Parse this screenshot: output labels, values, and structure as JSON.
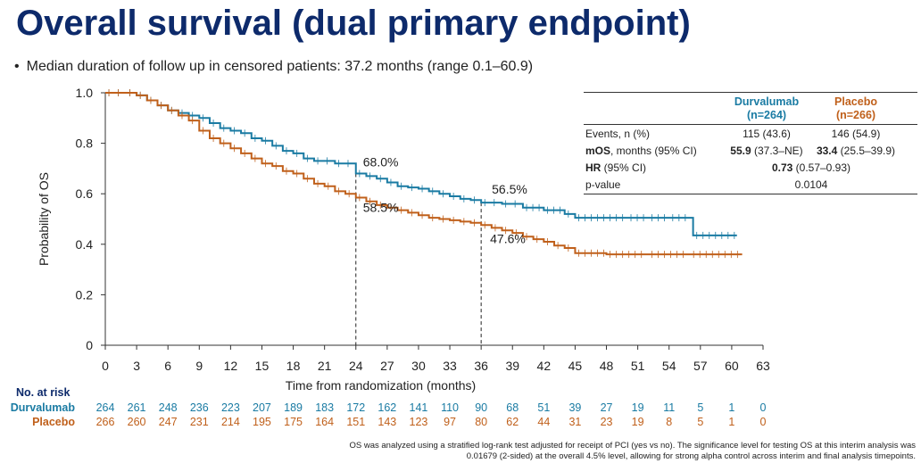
{
  "title": "Overall survival (dual primary endpoint)",
  "bullet": "Median duration of follow up in censored patients: 37.2 months (range 0.1–60.9)",
  "colors": {
    "durvalumab": "#1a7ba3",
    "placebo": "#c0601b",
    "title": "#0d2a6b"
  },
  "chart_data": {
    "type": "line",
    "subtype": "kaplan-meier",
    "xlabel": "Time from randomization (months)",
    "ylabel": "Probability of OS",
    "xlim": [
      0,
      63
    ],
    "ylim": [
      0,
      1.0
    ],
    "x_ticks": [
      0,
      3,
      6,
      9,
      12,
      15,
      18,
      21,
      24,
      27,
      30,
      33,
      36,
      39,
      42,
      45,
      48,
      51,
      54,
      57,
      60,
      63
    ],
    "y_ticks": [
      0,
      0.2,
      0.4,
      0.6,
      0.8,
      1.0
    ],
    "y_tick_labels": [
      "0",
      "0.2",
      "0.4",
      "0.6",
      "0.8",
      "1.0"
    ],
    "series": [
      {
        "name": "Durvalumab",
        "x": [
          0,
          2,
          3,
          4,
          5,
          6,
          7,
          8,
          9,
          10,
          11,
          12,
          13,
          14,
          15,
          16,
          17,
          18,
          19,
          20,
          22,
          24,
          25,
          26,
          27,
          28,
          29,
          30,
          31,
          32,
          33,
          34,
          35,
          36,
          38,
          40,
          42,
          44,
          45,
          48,
          50,
          52,
          54,
          56,
          56.3,
          60.5
        ],
        "y": [
          1.0,
          1.0,
          0.99,
          0.97,
          0.95,
          0.93,
          0.92,
          0.91,
          0.9,
          0.88,
          0.86,
          0.85,
          0.84,
          0.82,
          0.81,
          0.79,
          0.77,
          0.76,
          0.74,
          0.73,
          0.72,
          0.68,
          0.67,
          0.66,
          0.645,
          0.63,
          0.625,
          0.62,
          0.61,
          0.6,
          0.59,
          0.58,
          0.575,
          0.565,
          0.56,
          0.545,
          0.535,
          0.52,
          0.505,
          0.505,
          0.505,
          0.505,
          0.505,
          0.505,
          0.435,
          0.435
        ]
      },
      {
        "name": "Placebo",
        "x": [
          0,
          2,
          3,
          4,
          5,
          6,
          7,
          8,
          9,
          10,
          11,
          12,
          13,
          14,
          15,
          16,
          17,
          18,
          19,
          20,
          21,
          22,
          23,
          24,
          25,
          26,
          27,
          28,
          29,
          30,
          31,
          32,
          33,
          34,
          35,
          36,
          37,
          38,
          39,
          40,
          41,
          42,
          43,
          44,
          45,
          48,
          52,
          56,
          61
        ],
        "y": [
          1.0,
          1.0,
          0.99,
          0.97,
          0.95,
          0.93,
          0.91,
          0.89,
          0.85,
          0.82,
          0.8,
          0.78,
          0.76,
          0.74,
          0.72,
          0.71,
          0.69,
          0.68,
          0.66,
          0.64,
          0.63,
          0.61,
          0.6,
          0.585,
          0.57,
          0.555,
          0.545,
          0.535,
          0.525,
          0.515,
          0.505,
          0.5,
          0.495,
          0.49,
          0.485,
          0.476,
          0.465,
          0.455,
          0.445,
          0.43,
          0.42,
          0.41,
          0.395,
          0.385,
          0.365,
          0.36,
          0.36,
          0.36,
          0.36
        ]
      }
    ],
    "annotations": [
      {
        "text": "68.0%",
        "x": 24,
        "y": 0.68,
        "series": "Durvalumab"
      },
      {
        "text": "58.5%",
        "x": 24,
        "y": 0.585,
        "series": "Placebo"
      },
      {
        "text": "56.5%",
        "x": 36,
        "y": 0.565,
        "series": "Durvalumab"
      },
      {
        "text": "47.6%",
        "x": 36,
        "y": 0.476,
        "series": "Placebo"
      }
    ],
    "reference_lines_x": [
      24,
      36
    ]
  },
  "risk_table": {
    "header": "No. at risk",
    "times": [
      0,
      3,
      6,
      9,
      12,
      15,
      18,
      21,
      24,
      27,
      30,
      33,
      36,
      39,
      42,
      45,
      48,
      51,
      54,
      57,
      60,
      63
    ],
    "rows": [
      {
        "label": "Durvalumab",
        "values": [
          "264",
          "261",
          "248",
          "236",
          "223",
          "207",
          "189",
          "183",
          "172",
          "162",
          "141",
          "110",
          "90",
          "68",
          "51",
          "39",
          "27",
          "19",
          "11",
          "5",
          "1",
          "0"
        ]
      },
      {
        "label": "Placebo",
        "values": [
          "266",
          "260",
          "247",
          "231",
          "214",
          "195",
          "175",
          "164",
          "151",
          "143",
          "123",
          "97",
          "80",
          "62",
          "44",
          "31",
          "23",
          "19",
          "8",
          "5",
          "1",
          "0"
        ]
      }
    ]
  },
  "summary_table": {
    "col_durva": "Durvalumab",
    "col_durva_n": "(n=264)",
    "col_placebo": "Placebo",
    "col_placebo_n": "(n=266)",
    "events_label": "Events, n (%)",
    "events_durva": "115 (43.6)",
    "events_placebo": "146 (54.9)",
    "mos_label_bold": "mOS",
    "mos_label_rest": ", months (95% CI)",
    "mos_durva_bold": "55.9",
    "mos_durva_rest": " (37.3–NE)",
    "mos_placebo_bold": "33.4",
    "mos_placebo_rest": " (25.5–39.9)",
    "hr_label_bold": "HR",
    "hr_label_rest": " (95% CI)",
    "hr_bold": "0.73",
    "hr_rest": " (0.57–0.93)",
    "p_label": "p-value",
    "p_value": "0.0104"
  },
  "footnote": "OS was analyzed using a stratified log-rank test adjusted for receipt of PCI (yes vs no). The significance level for testing OS at this interim analysis was 0.01679 (2-sided) at the overall 4.5% level, allowing for strong alpha control across interim and final analysis timepoints."
}
